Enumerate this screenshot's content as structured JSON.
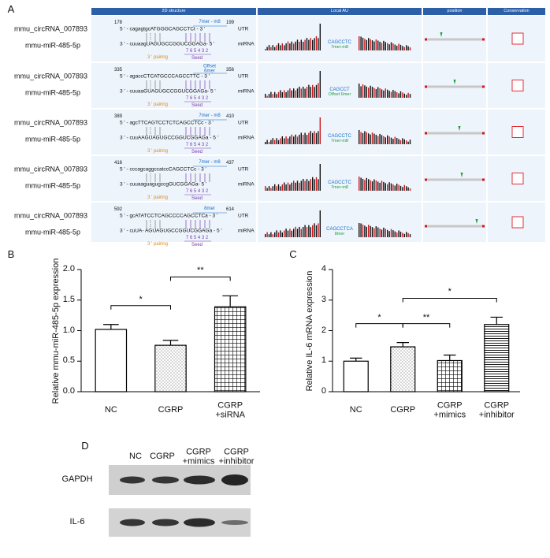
{
  "panel_a": {
    "label": "A",
    "headers": [
      "2D structure",
      "Local AU",
      "position",
      "Conservation"
    ],
    "rows": [
      {
        "circrna": "mmu_circRNA_007893",
        "mirna": "mmu-miR-485-5p",
        "start": 178,
        "end": 199,
        "site_type": "7mer - m8",
        "utr_seq": "5 ' - cagagtgcATGGGCAGCCTCt - 3 '",
        "mirna_seq": "3 ' - cuuaagUAGUGCCGGUCGGAGa- 5 '",
        "utr_label": "UTR",
        "mirna_label": "miRNA",
        "seed_positions": "7 6 5 4 3 2",
        "pairing_label": "3 ' pairing",
        "seed_label": "Seed",
        "au_site": "CAGCCTC",
        "au_type": "7mer-m8"
      },
      {
        "circrna": "mmu_circRNA_007893",
        "mirna": "mmu-miR-485-5p",
        "start": 335,
        "end": 356,
        "site_type": "Offset\n6mer",
        "utr_seq": "5 ' - agaccCTCATGCCCAGCCTTC - 3 '",
        "mirna_seq": "3 ' - cuuaaGUAGUGCCGGUCGGAGa- 5 '",
        "utr_label": "UTR",
        "mirna_label": "miRNA",
        "seed_positions": "7 6 5 4 3 2",
        "pairing_label": "3 ' pairing",
        "seed_label": "Seed",
        "au_site": "CAGCCT",
        "au_type": "Offset 6mer"
      },
      {
        "circrna": "mmu_circRNA_007893",
        "mirna": "mmu-miR-485-5p",
        "start": 389,
        "end": 410,
        "site_type": "7mer - m8",
        "utr_seq": "5 ' - agcTTCAGTCCTCTCAGCCTCc - 3 '",
        "mirna_seq": "3 ' - cuuAAGUAGUGCCGGUCGGAGa - 5 '",
        "utr_label": "UTR",
        "mirna_label": "miRNA",
        "seed_positions": "7 6 5 4 3 2",
        "pairing_label": "3 ' pairing",
        "seed_label": "Seed",
        "au_site": "CAGCCTC",
        "au_type": "7mer-m8"
      },
      {
        "circrna": "mmu_circRNA_007893",
        "mirna": "mmu-miR-485-5p",
        "start": 416,
        "end": 437,
        "site_type": "7mer - m8",
        "utr_seq": "5 ' - cccagcaggccatccCAGCCTCc - 3 '",
        "mirna_seq": "3 ' - cuuaaguagugccgGUCGGAGa- 5 '",
        "utr_label": "UTR",
        "mirna_label": "miRNA",
        "seed_positions": "7 6 5 4 3 2",
        "pairing_label": "3 ' pairing",
        "seed_label": "Seed",
        "au_site": "CAGCCTC",
        "au_type": "7mer-m8"
      },
      {
        "circrna": "mmu_circRNA_007893",
        "mirna": "mmu-miR-485-5p",
        "start": 592,
        "end": 614,
        "site_type": "8mer",
        "utr_seq": "5 ' - gcATATCCTCAGCCCCAGCCTCa - 3 '",
        "mirna_seq": "3 ' - cuUA- AGUAGUGCCGGUCGGAGa - 5 '",
        "utr_label": "UTR",
        "mirna_label": "miRNA",
        "seed_positions": "7 6 5 4 3 2",
        "pairing_label": "3 ' pairing",
        "seed_label": "Seed",
        "au_site": "CAGCCTCA",
        "au_type": "8mer"
      }
    ]
  },
  "chart_data": [
    {
      "type": "bar",
      "panel_label": "B",
      "ylabel": "Relative mmu-miR-485-5p expression",
      "categories": [
        "NC",
        "CGRP",
        "CGRP\n+siRNA"
      ],
      "values": [
        1.02,
        0.76,
        1.39
      ],
      "errors": [
        0.08,
        0.08,
        0.18
      ],
      "color": "#000000",
      "bar_patterns": [
        "none",
        "dots",
        "grid"
      ],
      "ylim": [
        0,
        2
      ],
      "yticks": [
        {
          "value": 0,
          "label": "0.0"
        },
        {
          "value": 0.5,
          "label": "0.5"
        },
        {
          "value": 1,
          "label": "1.0"
        },
        {
          "value": 1.5,
          "label": "1.5"
        },
        {
          "value": 2,
          "label": "2.0"
        }
      ],
      "annotations": [
        {
          "text": "*",
          "between": [
            0,
            1
          ]
        },
        {
          "text": "**",
          "between": [
            1,
            2
          ]
        }
      ]
    },
    {
      "type": "bar",
      "panel_label": "C",
      "ylabel": "Relative IL-6 mRNA expression",
      "categories": [
        "NC",
        "CGRP",
        "CGRP\n+mimics",
        "CGRP\n+inhibitor"
      ],
      "values": [
        1.0,
        1.47,
        1.02,
        2.2
      ],
      "errors": [
        0.1,
        0.14,
        0.18,
        0.24
      ],
      "color": "#000000",
      "bar_patterns": [
        "none",
        "dots",
        "grid",
        "hlines"
      ],
      "ylim": [
        0,
        4
      ],
      "yticks": [
        0,
        1,
        2,
        3,
        4
      ],
      "annotations": [
        {
          "text": "*",
          "between": [
            0,
            1
          ]
        },
        {
          "text": "**",
          "between": [
            1,
            2
          ]
        },
        {
          "text": "*",
          "between": [
            1,
            3
          ]
        }
      ]
    }
  ],
  "panel_d": {
    "label": "D",
    "lanes": [
      "NC",
      "CGRP",
      "CGRP\n+mimics",
      "CGRP\n+inhibitor"
    ],
    "proteins": [
      "GAPDH",
      "IL-6"
    ]
  }
}
